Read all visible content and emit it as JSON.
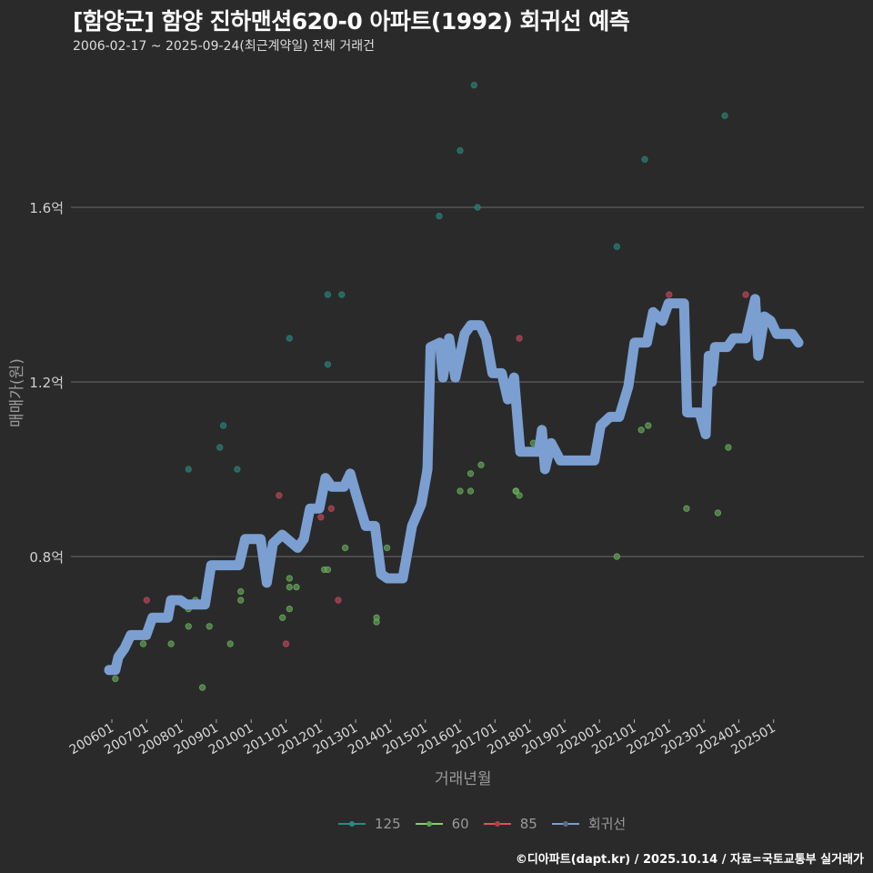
{
  "header": {
    "title": "[함양군] 함양 진하맨션620-0 아파트(1992) 회귀선 예측",
    "subtitle": "2006-02-17 ~ 2025-09-24(최근계약일) 전체 거래건"
  },
  "axes": {
    "y_title": "매매가(원)",
    "x_title": "거래년월",
    "y_ticks": [
      {
        "label": "1.6억",
        "value": 1.6
      },
      {
        "label": "1.2억",
        "value": 1.2
      },
      {
        "label": "0.8억",
        "value": 0.8
      }
    ],
    "x_ticks": [
      "200601",
      "200701",
      "200801",
      "200901",
      "201001",
      "201101",
      "201201",
      "201301",
      "201401",
      "201501",
      "201601",
      "201701",
      "201801",
      "201901",
      "202001",
      "202101",
      "202201",
      "202301",
      "202401",
      "202501"
    ]
  },
  "legend": {
    "items": [
      {
        "label": "125",
        "color": "#2a8a80"
      },
      {
        "label": "60",
        "color": "#7ed36a"
      },
      {
        "label": "85",
        "color": "#e0505a"
      },
      {
        "label": "회귀선",
        "color": "#7b9fd0"
      }
    ]
  },
  "credit": "©디아파트(dapt.kr) / 2025.10.14 / 자료=국토교통부 실거래가",
  "chart_data": {
    "type": "scatter",
    "title": "[함양군] 함양 진하맨션620-0 아파트(1992) 회귀선 예측",
    "subtitle": "2006-02-17 ~ 2025-09-24(최근계약일) 전체 거래건",
    "xlabel": "거래년월",
    "ylabel": "매매가(원)",
    "ylim": [
      0.45,
      1.9
    ],
    "y_unit": "억",
    "grid": "horizontal",
    "legend_position": "bottom",
    "categories": [
      "200601",
      "200701",
      "200801",
      "200901",
      "201001",
      "201101",
      "201201",
      "201301",
      "201401",
      "201501",
      "201601",
      "201701",
      "201801",
      "201901",
      "202001",
      "202101",
      "202201",
      "202301",
      "202401",
      "202501"
    ],
    "series": [
      {
        "name": "125",
        "type": "scatter",
        "color": "#2a8a80",
        "points": [
          {
            "x": 2008.2,
            "y": 1.0
          },
          {
            "x": 2009.1,
            "y": 1.05
          },
          {
            "x": 2009.2,
            "y": 1.1
          },
          {
            "x": 2009.6,
            "y": 1.0
          },
          {
            "x": 2011.1,
            "y": 1.3
          },
          {
            "x": 2012.2,
            "y": 1.4
          },
          {
            "x": 2012.2,
            "y": 1.24
          },
          {
            "x": 2012.6,
            "y": 1.4
          },
          {
            "x": 2015.0,
            "y": 1.0
          },
          {
            "x": 2015.4,
            "y": 1.58
          },
          {
            "x": 2016.0,
            "y": 1.73
          },
          {
            "x": 2016.4,
            "y": 1.88
          },
          {
            "x": 2016.5,
            "y": 1.6
          },
          {
            "x": 2020.5,
            "y": 1.51
          },
          {
            "x": 2021.3,
            "y": 1.71
          },
          {
            "x": 2023.6,
            "y": 1.81
          }
        ]
      },
      {
        "name": "60",
        "type": "scatter",
        "color": "#7ed36a",
        "points": [
          {
            "x": 2006.1,
            "y": 0.52
          },
          {
            "x": 2006.9,
            "y": 0.6
          },
          {
            "x": 2007.7,
            "y": 0.6
          },
          {
            "x": 2008.2,
            "y": 0.64
          },
          {
            "x": 2008.2,
            "y": 0.68
          },
          {
            "x": 2008.4,
            "y": 0.7
          },
          {
            "x": 2008.6,
            "y": 0.5
          },
          {
            "x": 2008.8,
            "y": 0.64
          },
          {
            "x": 2009.4,
            "y": 0.6
          },
          {
            "x": 2009.7,
            "y": 0.72
          },
          {
            "x": 2009.7,
            "y": 0.7
          },
          {
            "x": 2010.9,
            "y": 0.66
          },
          {
            "x": 2011.1,
            "y": 0.75
          },
          {
            "x": 2011.1,
            "y": 0.73
          },
          {
            "x": 2011.1,
            "y": 0.68
          },
          {
            "x": 2011.3,
            "y": 0.73
          },
          {
            "x": 2012.1,
            "y": 0.77
          },
          {
            "x": 2012.2,
            "y": 0.77
          },
          {
            "x": 2012.7,
            "y": 0.82
          },
          {
            "x": 2013.6,
            "y": 0.66
          },
          {
            "x": 2013.6,
            "y": 0.65
          },
          {
            "x": 2013.9,
            "y": 0.82
          },
          {
            "x": 2016.0,
            "y": 0.95
          },
          {
            "x": 2016.3,
            "y": 0.99
          },
          {
            "x": 2016.3,
            "y": 0.95
          },
          {
            "x": 2016.6,
            "y": 1.01
          },
          {
            "x": 2017.6,
            "y": 0.95
          },
          {
            "x": 2017.6,
            "y": 0.95
          },
          {
            "x": 2017.7,
            "y": 0.94
          },
          {
            "x": 2018.1,
            "y": 1.06
          },
          {
            "x": 2020.5,
            "y": 0.8
          },
          {
            "x": 2021.2,
            "y": 1.09
          },
          {
            "x": 2021.4,
            "y": 1.1
          },
          {
            "x": 2022.5,
            "y": 0.91
          },
          {
            "x": 2023.4,
            "y": 0.9
          },
          {
            "x": 2023.7,
            "y": 1.05
          },
          {
            "x": 2024.5,
            "y": 1.33
          }
        ]
      },
      {
        "name": "85",
        "type": "scatter",
        "color": "#e0505a",
        "points": [
          {
            "x": 2007.0,
            "y": 0.7
          },
          {
            "x": 2010.8,
            "y": 0.94
          },
          {
            "x": 2011.0,
            "y": 0.6
          },
          {
            "x": 2012.0,
            "y": 0.89
          },
          {
            "x": 2012.3,
            "y": 0.91
          },
          {
            "x": 2012.5,
            "y": 0.7
          },
          {
            "x": 2017.7,
            "y": 1.3
          },
          {
            "x": 2022.0,
            "y": 1.4
          },
          {
            "x": 2024.2,
            "y": 1.4
          }
        ]
      },
      {
        "name": "회귀선",
        "type": "line",
        "color": "#7b9fd0",
        "points": [
          {
            "x": 2006.0,
            "y": 0.54
          },
          {
            "x": 2006.2,
            "y": 0.54
          },
          {
            "x": 2006.3,
            "y": 0.57
          },
          {
            "x": 2006.5,
            "y": 0.59
          },
          {
            "x": 2006.7,
            "y": 0.62
          },
          {
            "x": 2007.2,
            "y": 0.62
          },
          {
            "x": 2007.4,
            "y": 0.66
          },
          {
            "x": 2007.9,
            "y": 0.66
          },
          {
            "x": 2008.0,
            "y": 0.7
          },
          {
            "x": 2008.3,
            "y": 0.7
          },
          {
            "x": 2008.5,
            "y": 0.69
          },
          {
            "x": 2008.8,
            "y": 0.69
          },
          {
            "x": 2009.1,
            "y": 0.69
          },
          {
            "x": 2009.3,
            "y": 0.78
          },
          {
            "x": 2009.6,
            "y": 0.78
          },
          {
            "x": 2009.9,
            "y": 0.78
          },
          {
            "x": 2010.2,
            "y": 0.78
          },
          {
            "x": 2010.4,
            "y": 0.84
          },
          {
            "x": 2010.9,
            "y": 0.84
          },
          {
            "x": 2011.1,
            "y": 0.74
          },
          {
            "x": 2011.3,
            "y": 0.83
          },
          {
            "x": 2011.6,
            "y": 0.85
          },
          {
            "x": 2012.1,
            "y": 0.82
          },
          {
            "x": 2012.3,
            "y": 0.84
          },
          {
            "x": 2012.5,
            "y": 0.91
          },
          {
            "x": 2012.8,
            "y": 0.91
          },
          {
            "x": 2013.0,
            "y": 0.98
          },
          {
            "x": 2013.2,
            "y": 0.96
          },
          {
            "x": 2013.6,
            "y": 0.96
          },
          {
            "x": 2013.8,
            "y": 0.99
          },
          {
            "x": 2014.0,
            "y": 0.94
          },
          {
            "x": 2014.3,
            "y": 0.87
          },
          {
            "x": 2014.6,
            "y": 0.87
          },
          {
            "x": 2014.8,
            "y": 0.76
          },
          {
            "x": 2015.0,
            "y": 0.75
          },
          {
            "x": 2015.5,
            "y": 0.75
          },
          {
            "x": 2015.8,
            "y": 0.87
          },
          {
            "x": 2016.1,
            "y": 0.92
          },
          {
            "x": 2016.3,
            "y": 1.0
          },
          {
            "x": 2016.4,
            "y": 1.28
          },
          {
            "x": 2016.7,
            "y": 1.29
          },
          {
            "x": 2016.8,
            "y": 1.21
          },
          {
            "x": 2017.0,
            "y": 1.3
          },
          {
            "x": 2017.2,
            "y": 1.21
          },
          {
            "x": 2017.5,
            "y": 1.31
          },
          {
            "x": 2017.7,
            "y": 1.33
          },
          {
            "x": 2018.0,
            "y": 1.33
          },
          {
            "x": 2018.2,
            "y": 1.3
          },
          {
            "x": 2018.4,
            "y": 1.22
          },
          {
            "x": 2018.7,
            "y": 1.22
          },
          {
            "x": 2018.9,
            "y": 1.16
          },
          {
            "x": 2019.1,
            "y": 1.21
          },
          {
            "x": 2019.3,
            "y": 1.04
          },
          {
            "x": 2019.9,
            "y": 1.04
          },
          {
            "x": 2020.0,
            "y": 1.09
          },
          {
            "x": 2020.1,
            "y": 1.0
          },
          {
            "x": 2020.3,
            "y": 1.06
          },
          {
            "x": 2020.6,
            "y": 1.02
          },
          {
            "x": 2021.7,
            "y": 1.02
          },
          {
            "x": 2021.9,
            "y": 1.1
          },
          {
            "x": 2022.2,
            "y": 1.12
          },
          {
            "x": 2022.5,
            "y": 1.12
          },
          {
            "x": 2022.8,
            "y": 1.19
          },
          {
            "x": 2023.0,
            "y": 1.29
          },
          {
            "x": 2023.4,
            "y": 1.29
          },
          {
            "x": 2023.6,
            "y": 1.36
          },
          {
            "x": 2023.9,
            "y": 1.34
          },
          {
            "x": 2024.1,
            "y": 1.38
          },
          {
            "x": 2024.6,
            "y": 1.38
          },
          {
            "x": 2024.7,
            "y": 1.13
          },
          {
            "x": 2025.1,
            "y": 1.13
          },
          {
            "x": 2025.3,
            "y": 1.08
          },
          {
            "x": 2025.4,
            "y": 1.26
          },
          {
            "x": 2025.5,
            "y": 1.2
          },
          {
            "x": 2025.6,
            "y": 1.28
          },
          {
            "x": 2026.0,
            "y": 1.28
          },
          {
            "x": 2026.2,
            "y": 1.3
          },
          {
            "x": 2026.6,
            "y": 1.3
          },
          {
            "x": 2026.9,
            "y": 1.39
          },
          {
            "x": 2027.0,
            "y": 1.26
          },
          {
            "x": 2027.2,
            "y": 1.35
          },
          {
            "x": 2027.4,
            "y": 1.34
          },
          {
            "x": 2027.6,
            "y": 1.31
          },
          {
            "x": 2028.1,
            "y": 1.31
          },
          {
            "x": 2028.3,
            "y": 1.29
          }
        ]
      }
    ]
  }
}
